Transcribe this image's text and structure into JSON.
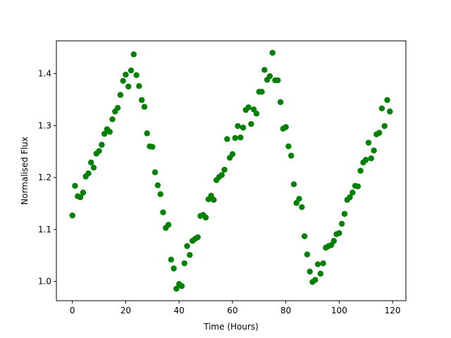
{
  "chart_data": {
    "type": "scatter",
    "title": "",
    "xlabel": "Time (Hours)",
    "ylabel": "Normalised Flux",
    "xlim": [
      -6,
      125
    ],
    "ylim": [
      0.963,
      1.463
    ],
    "xticks": [
      0,
      20,
      40,
      60,
      80,
      100,
      120
    ],
    "yticks": [
      1.0,
      1.1,
      1.2,
      1.3,
      1.4
    ],
    "xtick_labels": [
      "0",
      "20",
      "40",
      "60",
      "80",
      "100",
      "120"
    ],
    "ytick_labels": [
      "1.0",
      "1.1",
      "1.2",
      "1.3",
      "1.4"
    ],
    "grid": false,
    "marker_color": "#008000",
    "series": [
      {
        "x": [
          0,
          1,
          2,
          3,
          4,
          5,
          6,
          7,
          8,
          9,
          10,
          11,
          12,
          13,
          14,
          15,
          16,
          17,
          18,
          19,
          20,
          21,
          22,
          23,
          24,
          25,
          26,
          27,
          28,
          29,
          30,
          31,
          32,
          33,
          34,
          35,
          36,
          37,
          38,
          39,
          40,
          41,
          42,
          43,
          44,
          45,
          46,
          47,
          48,
          49,
          50,
          51,
          52,
          53,
          54,
          55,
          56,
          57,
          58,
          59,
          60,
          61,
          62,
          63,
          64,
          65,
          66,
          67,
          68,
          69,
          70,
          71,
          72,
          73,
          74,
          75,
          76,
          77,
          78,
          79,
          80,
          81,
          82,
          83,
          84,
          85,
          86,
          87,
          88,
          89,
          90,
          91,
          92,
          93,
          94,
          95,
          96,
          97,
          98,
          99,
          100,
          101,
          102,
          103,
          104,
          105,
          106,
          107,
          108,
          109,
          110,
          111,
          112,
          113,
          114,
          115,
          116,
          117,
          118,
          119
        ],
        "y": [
          1.127,
          1.184,
          1.164,
          1.162,
          1.171,
          1.202,
          1.208,
          1.229,
          1.219,
          1.246,
          1.251,
          1.263,
          1.284,
          1.293,
          1.288,
          1.312,
          1.327,
          1.334,
          1.359,
          1.386,
          1.398,
          1.375,
          1.406,
          1.437,
          1.397,
          1.376,
          1.349,
          1.336,
          1.285,
          1.26,
          1.259,
          1.21,
          1.185,
          1.168,
          1.133,
          1.103,
          1.109,
          1.042,
          1.025,
          0.986,
          0.995,
          0.991,
          1.035,
          1.068,
          1.051,
          1.078,
          1.082,
          1.085,
          1.126,
          1.128,
          1.123,
          1.158,
          1.165,
          1.157,
          1.195,
          1.201,
          1.205,
          1.215,
          1.274,
          1.238,
          1.245,
          1.276,
          1.299,
          1.277,
          1.296,
          1.33,
          1.335,
          1.303,
          1.331,
          1.323,
          1.365,
          1.365,
          1.407,
          1.388,
          1.395,
          1.44,
          1.387,
          1.387,
          1.345,
          1.294,
          1.297,
          1.26,
          1.242,
          1.187,
          1.151,
          1.159,
          1.143,
          1.087,
          1.052,
          1.019,
          0.999,
          1.003,
          1.033,
          1.015,
          1.035,
          1.065,
          1.068,
          1.07,
          1.078,
          1.091,
          1.093,
          1.111,
          1.13,
          1.157,
          1.162,
          1.171,
          1.184,
          1.183,
          1.213,
          1.229,
          1.234,
          1.267,
          1.237,
          1.252,
          1.283,
          1.286,
          1.333,
          1.299,
          1.349,
          1.327
        ]
      }
    ]
  }
}
